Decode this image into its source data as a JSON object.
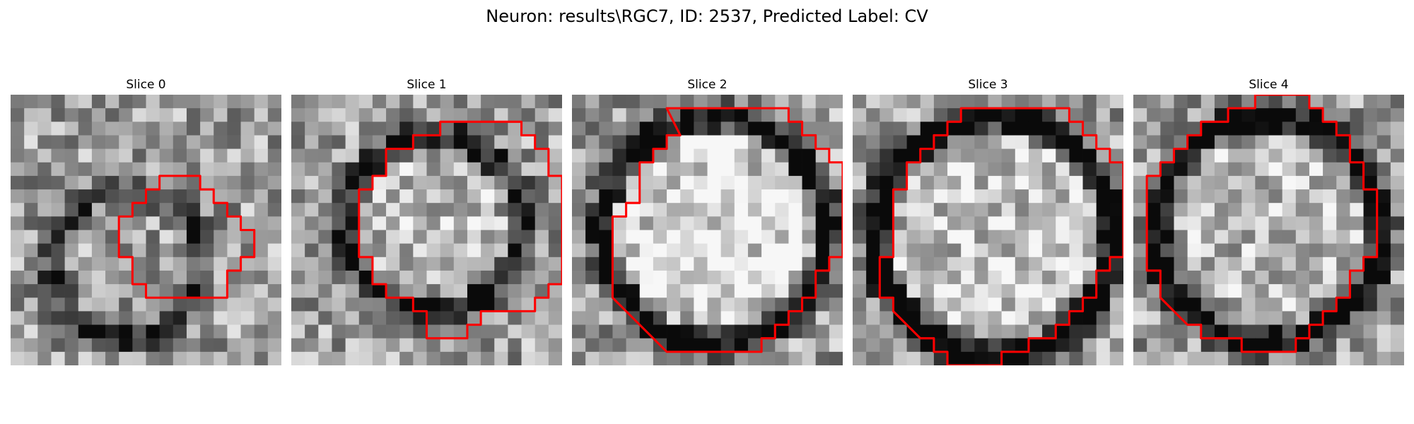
{
  "figure": {
    "title": "Neuron: results\\RGC7, ID: 2537, Predicted Label: CV",
    "contour_color": "#ff0000"
  },
  "panels": [
    {
      "title": "Slice 0",
      "contour": [
        [
          12,
          6
        ],
        [
          14,
          6
        ],
        [
          14,
          7
        ],
        [
          15,
          7
        ],
        [
          15,
          8
        ],
        [
          16,
          8
        ],
        [
          16,
          9
        ],
        [
          17,
          9
        ],
        [
          17,
          10
        ],
        [
          18,
          10
        ],
        [
          18,
          12
        ],
        [
          17,
          12
        ],
        [
          17,
          13
        ],
        [
          16,
          13
        ],
        [
          16,
          15
        ],
        [
          14,
          15
        ],
        [
          13,
          15
        ],
        [
          10,
          15
        ],
        [
          10,
          14
        ],
        [
          9,
          14
        ],
        [
          9,
          12
        ],
        [
          8,
          12
        ],
        [
          8,
          9
        ],
        [
          9,
          9
        ],
        [
          9,
          8
        ],
        [
          10,
          8
        ],
        [
          10,
          7
        ],
        [
          11,
          7
        ],
        [
          11,
          6
        ]
      ]
    },
    {
      "title": "Slice 1",
      "contour": [
        [
          12,
          2
        ],
        [
          17,
          2
        ],
        [
          17,
          3
        ],
        [
          18,
          3
        ],
        [
          18,
          4
        ],
        [
          19,
          4
        ],
        [
          19,
          6
        ],
        [
          20,
          6
        ],
        [
          20,
          14
        ],
        [
          19,
          14
        ],
        [
          19,
          15
        ],
        [
          18,
          15
        ],
        [
          18,
          16
        ],
        [
          15,
          16
        ],
        [
          14,
          16
        ],
        [
          14,
          17
        ],
        [
          13,
          17
        ],
        [
          13,
          18
        ],
        [
          11,
          18
        ],
        [
          10,
          18
        ],
        [
          10,
          16
        ],
        [
          9,
          16
        ],
        [
          9,
          15
        ],
        [
          7,
          15
        ],
        [
          7,
          14
        ],
        [
          6,
          14
        ],
        [
          6,
          12
        ],
        [
          5,
          12
        ],
        [
          5,
          7
        ],
        [
          6,
          7
        ],
        [
          6,
          6
        ],
        [
          7,
          6
        ],
        [
          7,
          4
        ],
        [
          9,
          4
        ],
        [
          9,
          3
        ],
        [
          11,
          3
        ],
        [
          11,
          2
        ]
      ]
    },
    {
      "title": "Slice 2",
      "contour": [
        [
          7,
          1
        ],
        [
          16,
          1
        ],
        [
          16,
          2
        ],
        [
          17,
          2
        ],
        [
          17,
          3
        ],
        [
          18,
          3
        ],
        [
          18,
          4
        ],
        [
          19,
          4
        ],
        [
          19,
          5
        ],
        [
          20,
          5
        ],
        [
          20,
          12
        ],
        [
          19,
          12
        ],
        [
          19,
          13
        ],
        [
          18,
          13
        ],
        [
          18,
          15
        ],
        [
          17,
          15
        ],
        [
          17,
          16
        ],
        [
          16,
          16
        ],
        [
          16,
          17
        ],
        [
          15,
          17
        ],
        [
          15,
          18
        ],
        [
          14,
          18
        ],
        [
          14,
          19
        ],
        [
          12,
          19
        ],
        [
          7,
          19
        ],
        [
          6,
          18
        ],
        [
          5,
          17
        ],
        [
          4,
          16
        ],
        [
          3,
          15
        ],
        [
          3,
          14
        ],
        [
          3,
          9
        ],
        [
          4,
          9
        ],
        [
          4,
          8
        ],
        [
          5,
          8
        ],
        [
          5,
          5
        ],
        [
          6,
          5
        ],
        [
          6,
          4
        ],
        [
          7,
          4
        ],
        [
          7,
          3
        ],
        [
          8,
          3
        ]
      ]
    },
    {
      "title": "Slice 3",
      "contour": [
        [
          8,
          1
        ],
        [
          16,
          1
        ],
        [
          16,
          2
        ],
        [
          17,
          2
        ],
        [
          17,
          3
        ],
        [
          18,
          3
        ],
        [
          18,
          4
        ],
        [
          19,
          4
        ],
        [
          19,
          5
        ],
        [
          20,
          5
        ],
        [
          20,
          12
        ],
        [
          19,
          12
        ],
        [
          19,
          13
        ],
        [
          18,
          13
        ],
        [
          18,
          15
        ],
        [
          17,
          15
        ],
        [
          17,
          16
        ],
        [
          16,
          16
        ],
        [
          16,
          17
        ],
        [
          15,
          17
        ],
        [
          15,
          18
        ],
        [
          13,
          18
        ],
        [
          13,
          19
        ],
        [
          11,
          19
        ],
        [
          11,
          20
        ],
        [
          7,
          20
        ],
        [
          7,
          19
        ],
        [
          6,
          19
        ],
        [
          6,
          18
        ],
        [
          5,
          18
        ],
        [
          4,
          17
        ],
        [
          3,
          16
        ],
        [
          3,
          15
        ],
        [
          2,
          15
        ],
        [
          2,
          14
        ],
        [
          2,
          12
        ],
        [
          3,
          12
        ],
        [
          3,
          7
        ],
        [
          4,
          7
        ],
        [
          4,
          5
        ],
        [
          5,
          5
        ],
        [
          5,
          4
        ],
        [
          6,
          4
        ],
        [
          6,
          3
        ],
        [
          7,
          3
        ],
        [
          7,
          2
        ],
        [
          8,
          2
        ]
      ]
    },
    {
      "title": "Slice 4",
      "contour": [
        [
          8,
          1
        ],
        [
          9,
          1
        ],
        [
          9,
          0
        ],
        [
          12,
          0
        ],
        [
          13,
          0
        ],
        [
          13,
          1
        ],
        [
          14,
          1
        ],
        [
          14,
          2
        ],
        [
          15,
          2
        ],
        [
          15,
          3
        ],
        [
          16,
          3
        ],
        [
          16,
          5
        ],
        [
          17,
          5
        ],
        [
          17,
          7
        ],
        [
          18,
          7
        ],
        [
          18,
          12
        ],
        [
          17,
          12
        ],
        [
          17,
          13
        ],
        [
          16,
          13
        ],
        [
          16,
          15
        ],
        [
          15,
          15
        ],
        [
          15,
          16
        ],
        [
          14,
          16
        ],
        [
          14,
          17
        ],
        [
          13,
          17
        ],
        [
          13,
          18
        ],
        [
          12,
          18
        ],
        [
          12,
          19
        ],
        [
          10,
          19
        ],
        [
          8,
          19
        ],
        [
          8,
          18
        ],
        [
          6,
          18
        ],
        [
          5,
          18
        ],
        [
          5,
          17
        ],
        [
          4,
          17
        ],
        [
          3,
          16
        ],
        [
          2,
          15
        ],
        [
          2,
          14
        ],
        [
          2,
          13
        ],
        [
          1,
          13
        ],
        [
          1,
          11
        ],
        [
          1,
          6
        ],
        [
          2,
          6
        ],
        [
          2,
          5
        ],
        [
          3,
          5
        ],
        [
          3,
          4
        ],
        [
          4,
          4
        ],
        [
          4,
          3
        ],
        [
          5,
          3
        ],
        [
          5,
          2
        ],
        [
          7,
          2
        ],
        [
          7,
          1
        ]
      ]
    }
  ]
}
